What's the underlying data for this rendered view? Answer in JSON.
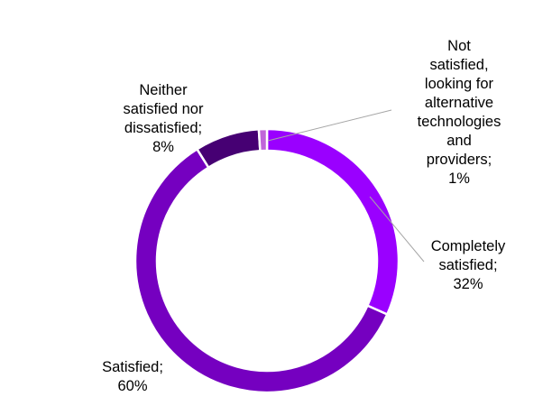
{
  "chart_data": {
    "type": "pie",
    "variant": "donut",
    "title": "",
    "start_at": "top",
    "direction": "clockwise",
    "slices": [
      {
        "key": "completely-satisfied",
        "label_lines": [
          "Completely",
          "satisfied;",
          "32%"
        ],
        "value": 32,
        "color": "#9a00ff"
      },
      {
        "key": "satisfied",
        "label_lines": [
          "Satisfied;",
          "60%"
        ],
        "value": 60,
        "color": "#7500c0"
      },
      {
        "key": "neither",
        "label_lines": [
          "Neither",
          "satisfied nor",
          "dissatisfied;",
          "8%"
        ],
        "value": 8,
        "color": "#460073"
      },
      {
        "key": "not-satisfied",
        "label_lines": [
          "Not",
          "satisfied,",
          "looking for",
          "alternative",
          "technologies",
          "and",
          "providers;",
          "1%"
        ],
        "value": 1,
        "color": "#c066d9"
      }
    ],
    "slice_border_color": "#ffffff",
    "leader_line_color": "#a6a6a6",
    "legend": "none"
  }
}
